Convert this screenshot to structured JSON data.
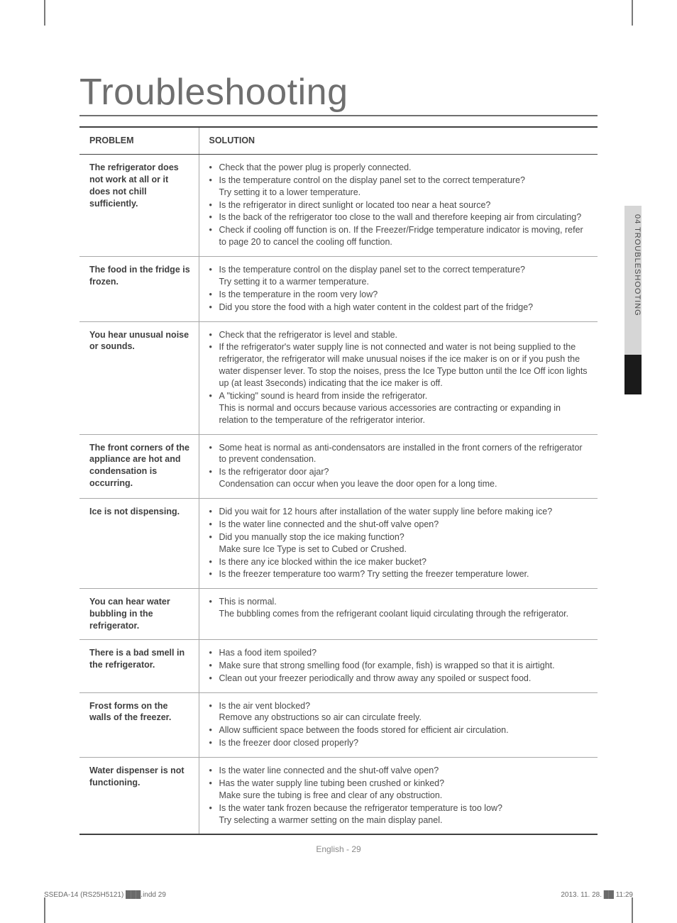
{
  "title": "Troubleshooting",
  "side_tab": "04  TROUBLESHOOTING",
  "footer_center": "English - 29",
  "footer_left": "SSEDA-14 (RS25H5121) ███.indd   29",
  "footer_right": "2013. 11. 28.   ██ 11:29",
  "table": {
    "head_problem": "PROBLEM",
    "head_solution": "SOLUTION",
    "rows": [
      {
        "problem": "The refrigerator does not work at all or it does not chill sufficiently.",
        "solutions": [
          {
            "t": "Check that the power plug is properly connected."
          },
          {
            "t": "Is the temperature control on the display panel set to the correct temperature?",
            "c": "Try setting it to a lower temperature."
          },
          {
            "t": "Is the refrigerator in direct sunlight or located too near a heat source?"
          },
          {
            "t": "Is the back of the refrigerator too close to the wall and therefore keeping air from circulating?"
          },
          {
            "t": "Check if cooling off function is on. If the Freezer/Fridge temperature indicator is moving, refer to page 20 to cancel the cooling off function."
          }
        ]
      },
      {
        "problem": "The food in the fridge is frozen.",
        "solutions": [
          {
            "t": "Is the temperature control on the display panel set to the correct temperature?",
            "c": "Try setting it to a warmer temperature."
          },
          {
            "t": "Is the temperature in the room very low?"
          },
          {
            "t": "Did you store the food with a high water content in the coldest part of the fridge?"
          }
        ]
      },
      {
        "problem": "You hear unusual noise or sounds.",
        "solutions": [
          {
            "t": "Check that the refrigerator is level and stable."
          },
          {
            "t": "If the refrigerator's water supply line is not connected and water is not being supplied to the refrigerator, the refrigerator will make unusual noises if the ice maker is on or if you push the water dispenser lever. To stop the noises, press the Ice Type button until the Ice Off icon lights up (at least 3seconds) indicating that the ice maker is off."
          },
          {
            "t": "A \"ticking\" sound is heard from inside the refrigerator.",
            "c": "This is normal and occurs because various accessories are contracting or expanding in relation to the temperature of the refrigerator interior."
          }
        ]
      },
      {
        "problem": "The front corners of the appliance are hot and condensation is occurring.",
        "solutions": [
          {
            "t": "Some heat is normal as anti-condensators are installed in the front corners of the refrigerator to prevent condensation."
          },
          {
            "t": "Is the refrigerator door ajar?",
            "c": "Condensation can occur when you leave the door open for a long time."
          }
        ]
      },
      {
        "problem": "Ice is not dispensing.",
        "solutions": [
          {
            "t": "Did you wait for 12 hours after installation of the water supply line before making ice?"
          },
          {
            "t": "Is the water line connected and the shut-off valve open?"
          },
          {
            "t": "Did you manually stop the ice making function?",
            "c": "Make sure Ice Type is set to Cubed or Crushed."
          },
          {
            "t": "Is there any ice blocked within the ice maker bucket?"
          },
          {
            "t": "Is the freezer temperature too warm? Try setting the freezer temperature lower."
          }
        ]
      },
      {
        "problem": "You can hear water bubbling in the refrigerator.",
        "solutions": [
          {
            "t": "This is normal.",
            "c": "The bubbling comes from the refrigerant coolant liquid circulating through the refrigerator."
          }
        ]
      },
      {
        "problem": "There is a bad smell in the refrigerator.",
        "solutions": [
          {
            "t": "Has a food item spoiled?"
          },
          {
            "t": "Make sure that strong smelling food (for example, fish) is wrapped so that it is airtight."
          },
          {
            "t": "Clean out your freezer periodically and throw away any spoiled or suspect food."
          }
        ]
      },
      {
        "problem": "Frost forms on the walls of the freezer.",
        "solutions": [
          {
            "t": "Is the air vent blocked?",
            "c": "Remove any obstructions so air can circulate freely."
          },
          {
            "t": "Allow sufficient space between the foods stored for efficient air circulation."
          },
          {
            "t": "Is the freezer door closed properly?"
          }
        ]
      },
      {
        "problem": "Water dispenser is not functioning.",
        "solutions": [
          {
            "t": "Is the water line connected and the shut-off valve open?"
          },
          {
            "t": "Has the water supply line tubing been crushed or kinked?",
            "c": "Make sure the tubing is free and clear of any obstruction."
          },
          {
            "t": "Is the water tank frozen because the refrigerator temperature is too low?",
            "c": "Try selecting a warmer setting on the main display panel."
          }
        ]
      }
    ]
  },
  "colors": {
    "text": "#4a4a4a",
    "heading": "#6f6f6f",
    "rule_dark": "#404040",
    "rule_light": "#a8a8a8",
    "tab_gray": "#d6d6d6",
    "tab_black": "#1a1a1a",
    "background": "#ffffff"
  }
}
